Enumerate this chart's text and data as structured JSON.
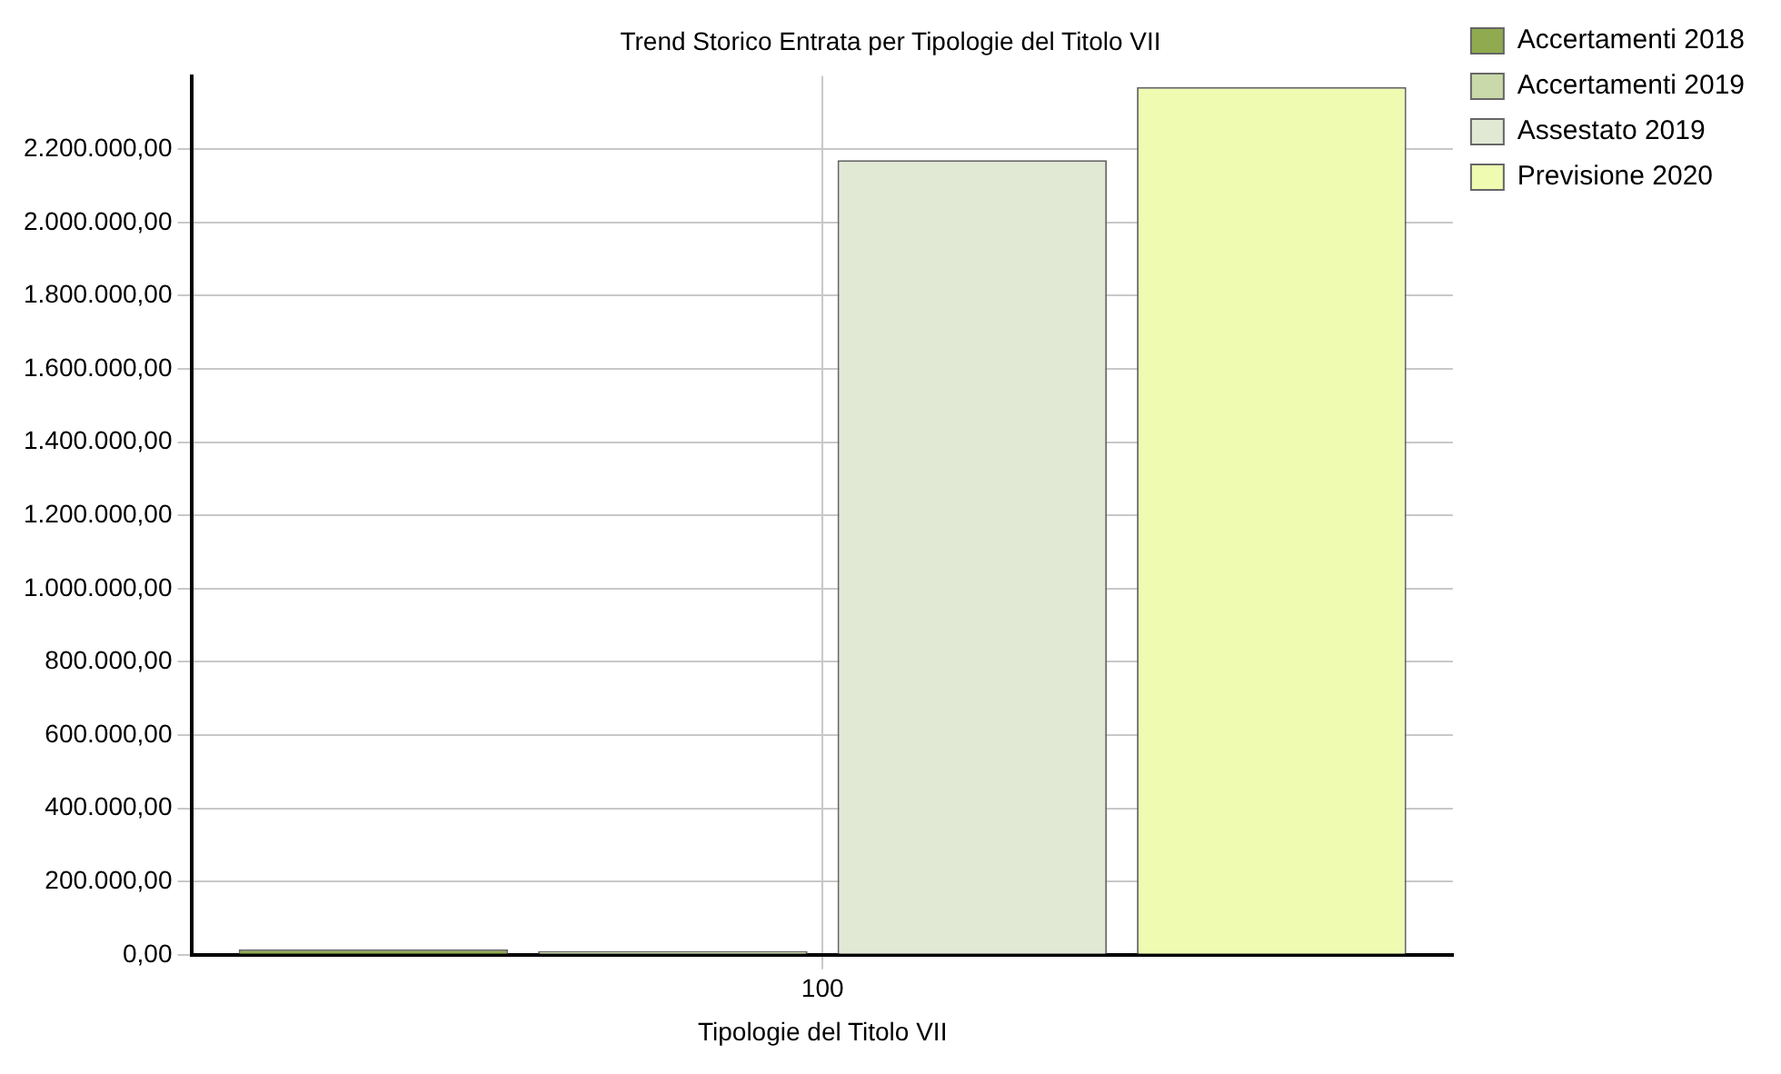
{
  "chart_data": {
    "type": "bar",
    "title": "Trend Storico Entrata per Tipologie del Titolo VII",
    "xlabel": "Tipologie del Titolo VII",
    "categories": [
      "100"
    ],
    "series": [
      {
        "name": "Accertamenti 2018",
        "color": "#8faa4f",
        "values": [
          15000
        ]
      },
      {
        "name": "Accertamenti 2019",
        "color": "#c9d9a9",
        "values": [
          10000
        ]
      },
      {
        "name": "Assestato 2019",
        "color": "#e1e9d5",
        "values": [
          2170000
        ]
      },
      {
        "name": "Previsione 2020",
        "color": "#eefbb0",
        "values": [
          2370000
        ]
      }
    ],
    "ylim": [
      0,
      2400000
    ],
    "yticks": [
      {
        "value": 0,
        "label": "0,00"
      },
      {
        "value": 200000,
        "label": "200.000,00"
      },
      {
        "value": 400000,
        "label": "400.000,00"
      },
      {
        "value": 600000,
        "label": "600.000,00"
      },
      {
        "value": 800000,
        "label": "800.000,00"
      },
      {
        "value": 1000000,
        "label": "1.000.000,00"
      },
      {
        "value": 1200000,
        "label": "1.200.000,00"
      },
      {
        "value": 1400000,
        "label": "1.400.000,00"
      },
      {
        "value": 1600000,
        "label": "1.600.000,00"
      },
      {
        "value": 1800000,
        "label": "1.800.000,00"
      },
      {
        "value": 2000000,
        "label": "2.000.000,00"
      },
      {
        "value": 2200000,
        "label": "2.200.000,00"
      }
    ],
    "grid": true,
    "legend": "top right"
  }
}
